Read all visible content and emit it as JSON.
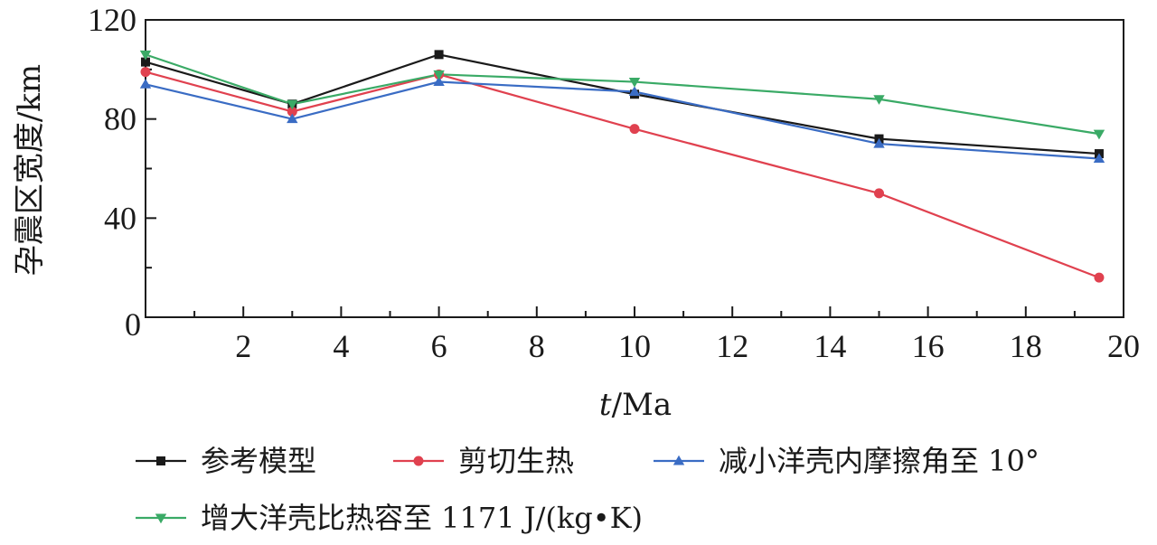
{
  "chart_data": {
    "type": "line",
    "xlabel_italic": "t",
    "xlabel_rest": "/Ma",
    "ylabel": "孕震区宽度/km",
    "xlim": [
      0,
      20
    ],
    "ylim": [
      0,
      120
    ],
    "xticks": [
      2,
      4,
      6,
      8,
      10,
      12,
      14,
      16,
      18,
      20
    ],
    "yticks": [
      0,
      40,
      80,
      120
    ],
    "grid": false,
    "legend_position": "bottom",
    "series": [
      {
        "name": "参考模型",
        "color": "#1a1a1a",
        "marker": "square",
        "x": [
          0,
          3,
          6,
          10,
          15,
          19.5
        ],
        "y": [
          103,
          86,
          106,
          90,
          72,
          66
        ]
      },
      {
        "name": "剪切生热",
        "color": "#e0414f",
        "marker": "circle",
        "x": [
          0,
          3,
          6,
          10,
          15,
          19.5
        ],
        "y": [
          99,
          83,
          98,
          76,
          50,
          16
        ]
      },
      {
        "name": "减小洋壳内摩擦角至 10°",
        "color": "#3a6cc4",
        "marker": "triangle-up",
        "x": [
          0,
          3,
          6,
          10,
          15,
          19.5
        ],
        "y": [
          94,
          80,
          95,
          91,
          70,
          64
        ]
      },
      {
        "name": "增大洋壳比热容至 1171 J/(kg•K)",
        "color": "#3aaa66",
        "marker": "triangle-down",
        "x": [
          0,
          3,
          6,
          10,
          15,
          19.5
        ],
        "y": [
          106,
          86,
          98,
          95,
          88,
          74
        ]
      }
    ]
  }
}
